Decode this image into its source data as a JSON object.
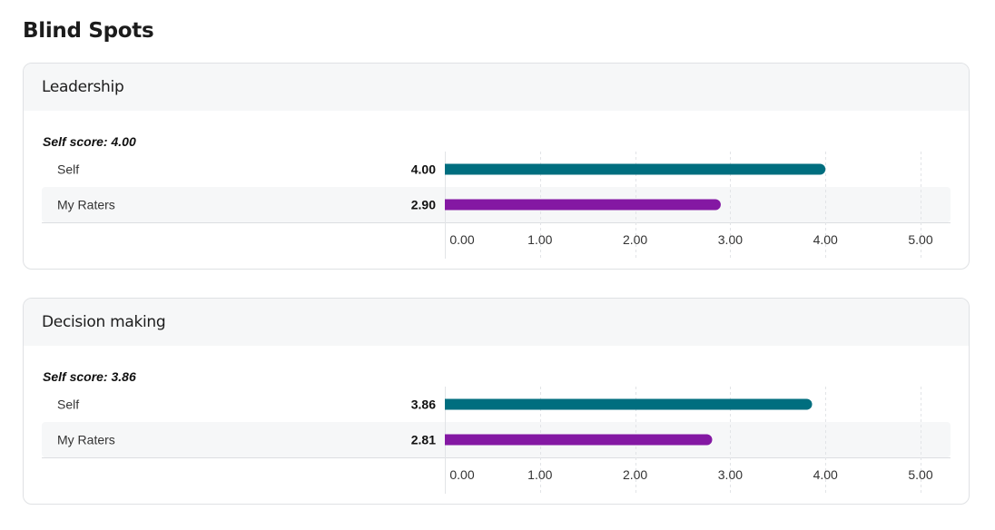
{
  "page": {
    "title": "Blind Spots"
  },
  "colors": {
    "self": "#006e7f",
    "raters": "#8418a3",
    "row_alt": "#f6f7f8",
    "grid": "#e2e4e7"
  },
  "chart_data": [
    {
      "type": "bar",
      "title": "Leadership",
      "subtitle": "Self score: 4.00",
      "orientation": "horizontal",
      "categories": [
        "Self",
        "My Raters"
      ],
      "values": [
        4.0,
        2.9
      ],
      "value_labels": [
        "4.00",
        "2.90"
      ],
      "xlim": [
        0,
        5
      ],
      "ticks": [
        0,
        1,
        2,
        3,
        4,
        5
      ],
      "tick_labels": [
        "0.00",
        "1.00",
        "2.00",
        "3.00",
        "4.00",
        "5.00"
      ],
      "grid": true
    },
    {
      "type": "bar",
      "title": "Decision making",
      "subtitle": "Self score: 3.86",
      "orientation": "horizontal",
      "categories": [
        "Self",
        "My Raters"
      ],
      "values": [
        3.86,
        2.81
      ],
      "value_labels": [
        "3.86",
        "2.81"
      ],
      "xlim": [
        0,
        5
      ],
      "ticks": [
        0,
        1,
        2,
        3,
        4,
        5
      ],
      "tick_labels": [
        "0.00",
        "1.00",
        "2.00",
        "3.00",
        "4.00",
        "5.00"
      ],
      "grid": true
    }
  ]
}
